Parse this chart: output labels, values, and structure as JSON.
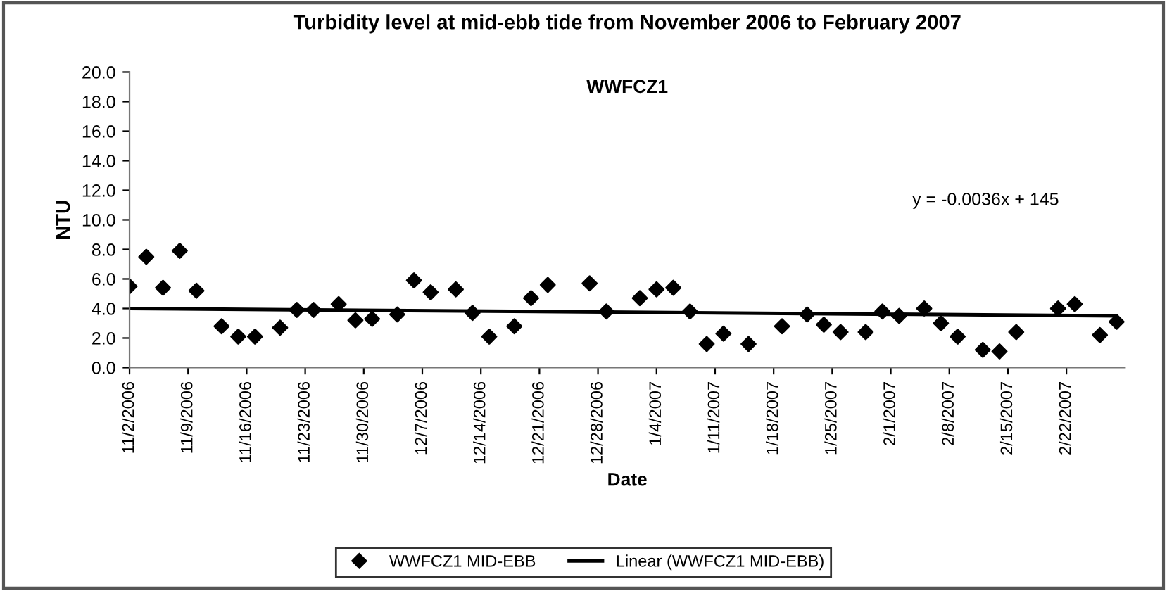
{
  "chart_data": {
    "type": "scatter",
    "title": "Turbidity level at mid-ebb tide from November 2006 to February 2007",
    "xlabel": "Date",
    "ylabel": "NTU",
    "annotations": [
      "WWFCZ1",
      "y = -0.0036x + 145"
    ],
    "series": [
      {
        "name": "WWFCZ1 MID-EBB",
        "color": "#000000",
        "marker": "diamond",
        "x": [
          "2006-11-02",
          "2006-11-04",
          "2006-11-06",
          "2006-11-08",
          "2006-11-10",
          "2006-11-13",
          "2006-11-15",
          "2006-11-17",
          "2006-11-20",
          "2006-11-22",
          "2006-11-24",
          "2006-11-27",
          "2006-11-29",
          "2006-12-01",
          "2006-12-04",
          "2006-12-06",
          "2006-12-08",
          "2006-12-11",
          "2006-12-13",
          "2006-12-15",
          "2006-12-18",
          "2006-12-20",
          "2006-12-22",
          "2006-12-27",
          "2006-12-29",
          "2007-01-02",
          "2007-01-04",
          "2007-01-06",
          "2007-01-08",
          "2007-01-10",
          "2007-01-12",
          "2007-01-15",
          "2007-01-19",
          "2007-01-22",
          "2007-01-24",
          "2007-01-26",
          "2007-01-29",
          "2007-01-31",
          "2007-02-02",
          "2007-02-05",
          "2007-02-07",
          "2007-02-09",
          "2007-02-12",
          "2007-02-14",
          "2007-02-16",
          "2007-02-21",
          "2007-02-23",
          "2007-02-26",
          "2007-02-28"
        ],
        "values": [
          5.5,
          7.5,
          5.4,
          7.9,
          5.2,
          2.8,
          2.1,
          2.1,
          2.7,
          3.9,
          3.9,
          4.3,
          3.2,
          3.3,
          3.6,
          5.9,
          5.1,
          5.3,
          3.7,
          2.1,
          2.8,
          4.7,
          5.6,
          5.7,
          3.8,
          4.7,
          5.3,
          5.4,
          3.8,
          1.6,
          2.3,
          1.6,
          2.8,
          3.6,
          2.9,
          2.4,
          2.4,
          3.8,
          3.5,
          4.0,
          3.0,
          2.1,
          1.2,
          1.1,
          2.4,
          4.0,
          4.3,
          2.2,
          3.1
        ]
      },
      {
        "name": "Linear (WWFCZ1 MID-EBB)",
        "color": "#000000",
        "type": "line",
        "line_style": "solid",
        "x": [
          "2006-11-02",
          "2007-02-28"
        ],
        "values": [
          4.0,
          3.5
        ]
      }
    ],
    "xlim": [
      "2006-11-02",
      "2007-03-01"
    ],
    "xticks": [
      {
        "value": "2006-11-02",
        "label": "11/2/2006"
      },
      {
        "value": "2006-11-09",
        "label": "11/9/2006"
      },
      {
        "value": "2006-11-16",
        "label": "11/16/2006"
      },
      {
        "value": "2006-11-23",
        "label": "11/23/2006"
      },
      {
        "value": "2006-11-30",
        "label": "11/30/2006"
      },
      {
        "value": "2006-12-07",
        "label": "12/7/2006"
      },
      {
        "value": "2006-12-14",
        "label": "12/14/2006"
      },
      {
        "value": "2006-12-21",
        "label": "12/21/2006"
      },
      {
        "value": "2006-12-28",
        "label": "12/28/2006"
      },
      {
        "value": "2007-01-04",
        "label": "1/4/2007"
      },
      {
        "value": "2007-01-11",
        "label": "1/11/2007"
      },
      {
        "value": "2007-01-18",
        "label": "1/18/2007"
      },
      {
        "value": "2007-01-25",
        "label": "1/25/2007"
      },
      {
        "value": "2007-02-01",
        "label": "2/1/2007"
      },
      {
        "value": "2007-02-08",
        "label": "2/8/2007"
      },
      {
        "value": "2007-02-15",
        "label": "2/15/2007"
      },
      {
        "value": "2007-02-22",
        "label": "2/22/2007"
      }
    ],
    "ylim": [
      0,
      20
    ],
    "yticks": [
      {
        "value": 0,
        "label": "0.0"
      },
      {
        "value": 2,
        "label": "2.0"
      },
      {
        "value": 4,
        "label": "4.0"
      },
      {
        "value": 6,
        "label": "6.0"
      },
      {
        "value": 8,
        "label": "8.0"
      },
      {
        "value": 10,
        "label": "10.0"
      },
      {
        "value": 12,
        "label": "12.0"
      },
      {
        "value": 14,
        "label": "14.0"
      },
      {
        "value": 16,
        "label": "16.0"
      },
      {
        "value": 18,
        "label": "18.0"
      },
      {
        "value": 20,
        "label": "20.0"
      }
    ],
    "grid": false,
    "legend": "bottom"
  }
}
